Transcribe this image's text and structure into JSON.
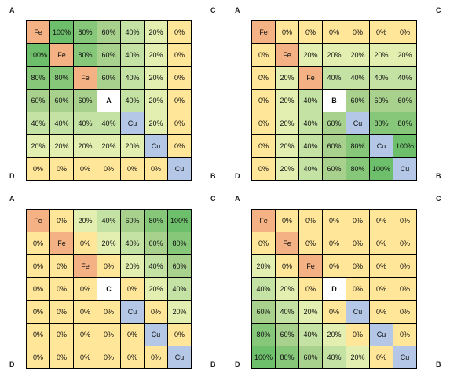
{
  "colors": {
    "fe": "#f4b183",
    "cu": "#b4c7e7",
    "empty": "#ffffff",
    "zero": "#ffe699",
    "g20": "#e2efb0",
    "g40": "#c3e2a4",
    "g60": "#a9d18e",
    "g80": "#86c77a",
    "g100": "#6dbf6b"
  },
  "panels": [
    {
      "corners": {
        "tl": "A",
        "tr": "C",
        "bl": "D",
        "br": "B"
      },
      "rows": [
        [
          "Fe",
          "100%",
          "80%",
          "60%",
          "40%",
          "20%",
          "0%"
        ],
        [
          "100%",
          "Fe",
          "80%",
          "60%",
          "40%",
          "20%",
          "0%"
        ],
        [
          "80%",
          "80%",
          "Fe",
          "60%",
          "40%",
          "20%",
          "0%"
        ],
        [
          "60%",
          "60%",
          "60%",
          "A",
          "40%",
          "20%",
          "0%"
        ],
        [
          "40%",
          "40%",
          "40%",
          "40%",
          "Cu",
          "20%",
          "0%"
        ],
        [
          "20%",
          "20%",
          "20%",
          "20%",
          "20%",
          "Cu",
          "0%"
        ],
        [
          "0%",
          "0%",
          "0%",
          "0%",
          "0%",
          "0%",
          "Cu"
        ]
      ]
    },
    {
      "corners": {
        "tl": "A",
        "tr": "C",
        "bl": "D",
        "br": "B"
      },
      "rows": [
        [
          "Fe",
          "0%",
          "0%",
          "0%",
          "0%",
          "0%",
          "0%"
        ],
        [
          "0%",
          "Fe",
          "20%",
          "20%",
          "20%",
          "20%",
          "20%"
        ],
        [
          "0%",
          "20%",
          "Fe",
          "40%",
          "40%",
          "40%",
          "40%"
        ],
        [
          "0%",
          "20%",
          "40%",
          "B",
          "60%",
          "60%",
          "60%"
        ],
        [
          "0%",
          "20%",
          "40%",
          "60%",
          "Cu",
          "80%",
          "80%"
        ],
        [
          "0%",
          "20%",
          "40%",
          "60%",
          "80%",
          "Cu",
          "100%"
        ],
        [
          "0%",
          "20%",
          "40%",
          "60%",
          "80%",
          "100%",
          "Cu"
        ]
      ]
    },
    {
      "corners": {
        "tl": "A",
        "tr": "C",
        "bl": "D",
        "br": "B"
      },
      "rows": [
        [
          "Fe",
          "0%",
          "20%",
          "40%",
          "60%",
          "80%",
          "100%"
        ],
        [
          "0%",
          "Fe",
          "0%",
          "20%",
          "40%",
          "60%",
          "80%"
        ],
        [
          "0%",
          "0%",
          "Fe",
          "0%",
          "20%",
          "40%",
          "60%"
        ],
        [
          "0%",
          "0%",
          "0%",
          "C",
          "0%",
          "20%",
          "40%"
        ],
        [
          "0%",
          "0%",
          "0%",
          "0%",
          "Cu",
          "0%",
          "20%"
        ],
        [
          "0%",
          "0%",
          "0%",
          "0%",
          "0%",
          "Cu",
          "0%"
        ],
        [
          "0%",
          "0%",
          "0%",
          "0%",
          "0%",
          "0%",
          "Cu"
        ]
      ]
    },
    {
      "corners": {
        "tl": "A",
        "tr": "C",
        "bl": "D",
        "br": "B"
      },
      "rows": [
        [
          "Fe",
          "0%",
          "0%",
          "0%",
          "0%",
          "0%",
          "0%"
        ],
        [
          "0%",
          "Fe",
          "0%",
          "0%",
          "0%",
          "0%",
          "0%"
        ],
        [
          "20%",
          "0%",
          "Fe",
          "0%",
          "0%",
          "0%",
          "0%"
        ],
        [
          "40%",
          "20%",
          "0%",
          "D",
          "0%",
          "0%",
          "0%"
        ],
        [
          "60%",
          "40%",
          "20%",
          "0%",
          "Cu",
          "0%",
          "0%"
        ],
        [
          "80%",
          "60%",
          "40%",
          "20%",
          "0%",
          "Cu",
          "0%"
        ],
        [
          "100%",
          "80%",
          "60%",
          "40%",
          "20%",
          "0%",
          "Cu"
        ]
      ]
    }
  ]
}
